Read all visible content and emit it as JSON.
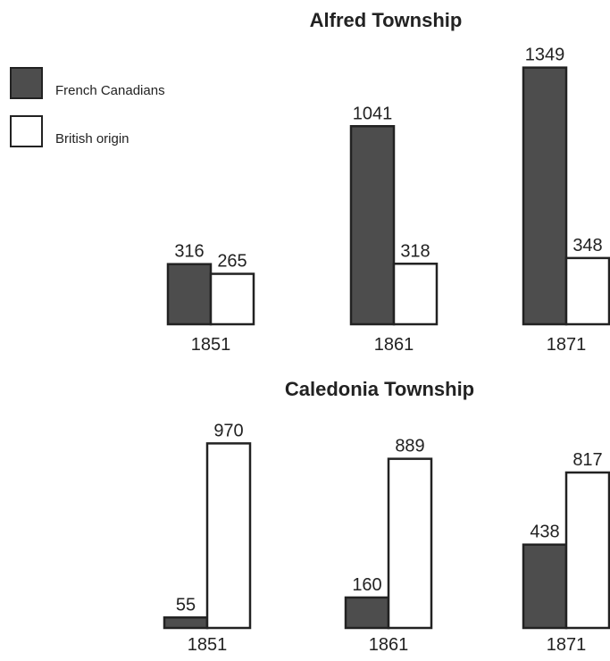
{
  "chart_data": [
    {
      "type": "bar",
      "title": "Alfred Township",
      "categories": [
        "1851",
        "1861",
        "1871"
      ],
      "series": [
        {
          "name": "French Canadians",
          "color": "#4d4d4d",
          "values": [
            316,
            1041,
            1349
          ]
        },
        {
          "name": "British origin",
          "color": "#ffffff",
          "values": [
            265,
            318,
            348
          ]
        }
      ]
    },
    {
      "type": "bar",
      "title": "Caledonia Township",
      "categories": [
        "1851",
        "1861",
        "1871"
      ],
      "series": [
        {
          "color": "#4d4d4d",
          "values": [
            55,
            160,
            438
          ]
        },
        {
          "color": "#ffffff",
          "values": [
            970,
            889,
            817
          ]
        }
      ]
    }
  ]
}
